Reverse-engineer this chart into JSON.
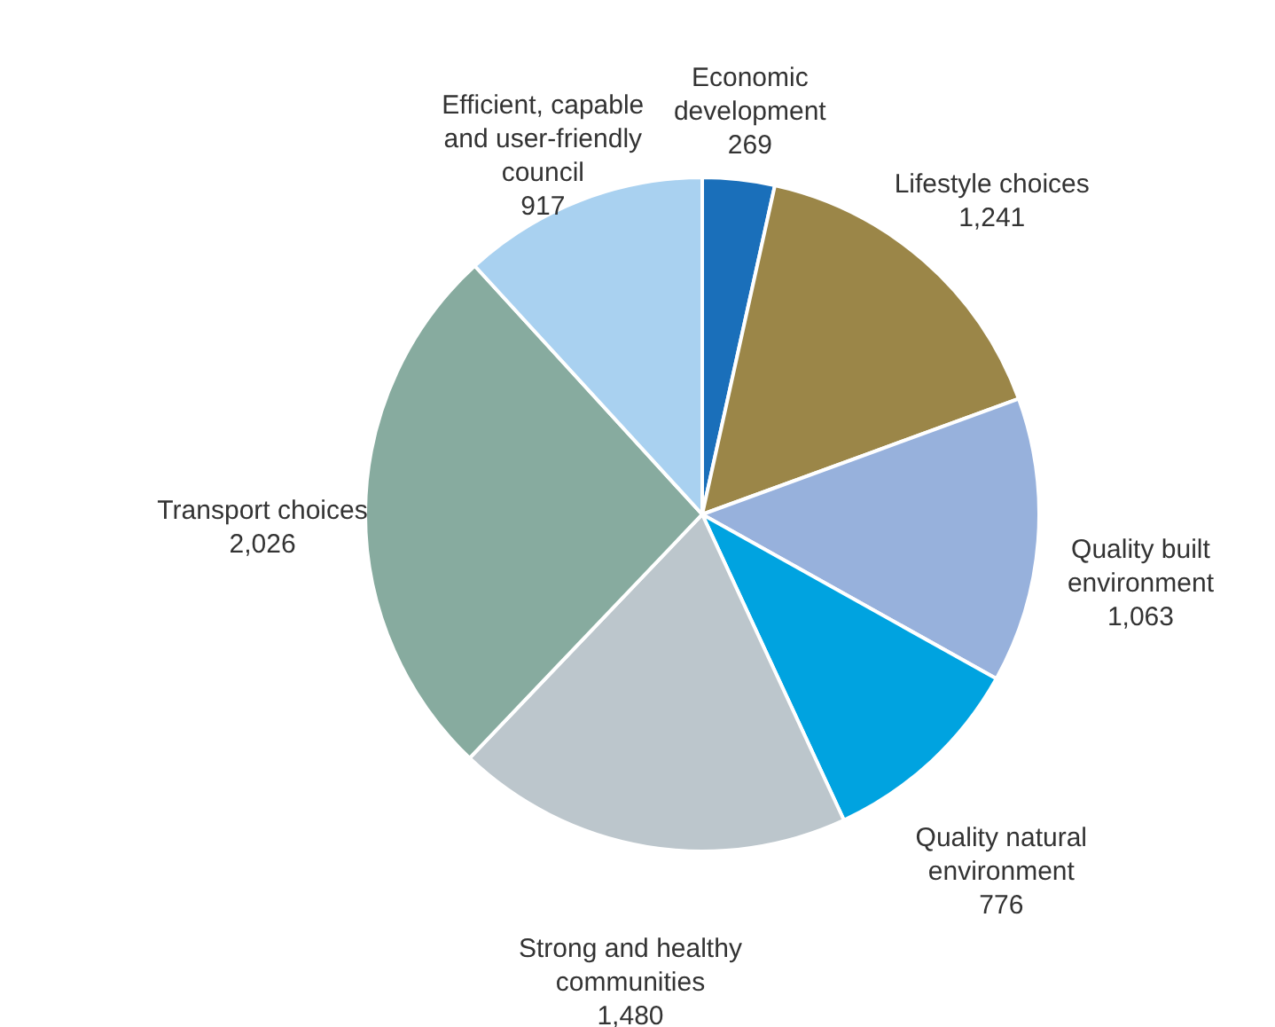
{
  "chart_data": {
    "type": "pie",
    "categories": [
      "Economic development",
      "Lifestyle choices",
      "Quality built environment",
      "Quality natural environment",
      "Strong and healthy communities",
      "Transport choices",
      "Efficient, capable and user-friendly council"
    ],
    "values": [
      269,
      1241,
      1063,
      776,
      1480,
      2026,
      917
    ],
    "colors": [
      "#1a6fba",
      "#9b8648",
      "#97b1dc",
      "#00a3e0",
      "#bcc6cc",
      "#87ab9f",
      "#a9d1f0"
    ],
    "value_labels": [
      "269",
      "1,241",
      "1,063",
      "776",
      "1,480",
      "2,026",
      "917"
    ]
  }
}
